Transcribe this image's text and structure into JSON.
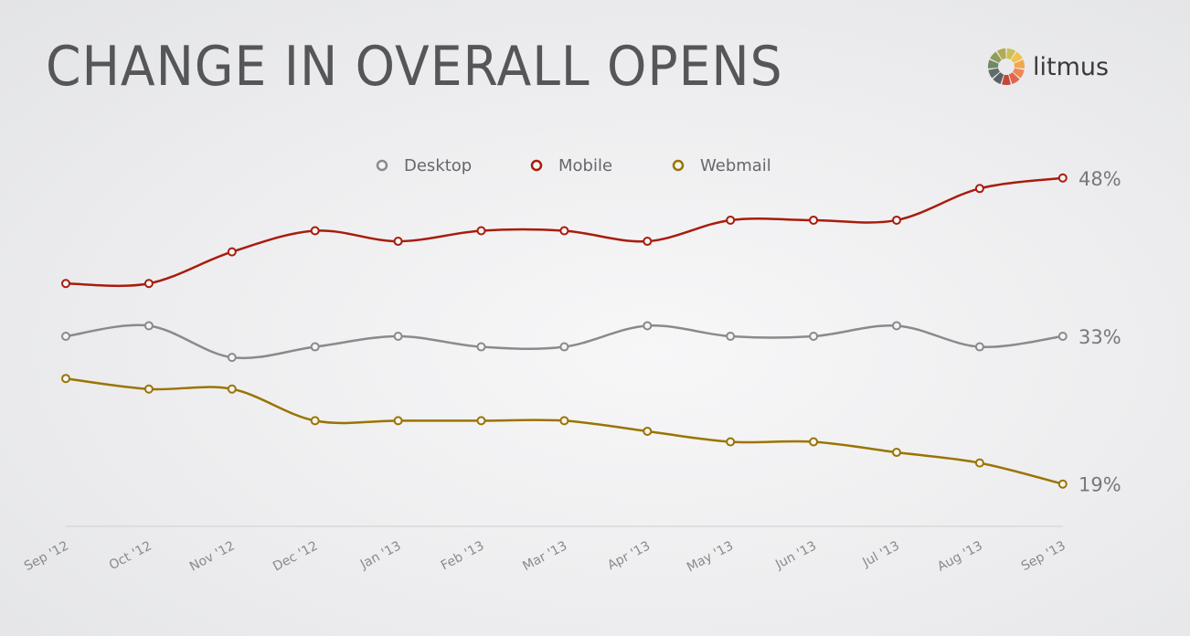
{
  "title": "CHANGE IN OVERALL OPENS",
  "logo": {
    "text": "litmus",
    "colors": [
      "#c8c05a",
      "#f3c24a",
      "#f4a64a",
      "#ee8755",
      "#e2654d",
      "#c3463a",
      "#5a6166",
      "#5f6e68",
      "#6f8868",
      "#8f9c5c",
      "#b1ab52"
    ]
  },
  "chart_data": {
    "type": "line",
    "title": "CHANGE IN OVERALL OPENS",
    "categories": [
      "Sep '12",
      "Oct '12",
      "Nov '12",
      "Dec '12",
      "Jan '13",
      "Feb '13",
      "Mar '13",
      "Apr '13",
      "May '13",
      "Jun '13",
      "Jul '13",
      "Aug '13",
      "Sep '13"
    ],
    "series": [
      {
        "name": "Desktop",
        "color": "#8a8a8c",
        "values": [
          33,
          34,
          31,
          32,
          33,
          32,
          32,
          34,
          33,
          33,
          34,
          32,
          33
        ],
        "end_label": "33%"
      },
      {
        "name": "Mobile",
        "color": "#a81c0c",
        "values": [
          38,
          38,
          41,
          43,
          42,
          43,
          43,
          42,
          44,
          44,
          44,
          47,
          48
        ],
        "end_label": "48%"
      },
      {
        "name": "Webmail",
        "color": "#9a7400",
        "values": [
          29,
          28,
          28,
          25,
          25,
          25,
          25,
          24,
          23,
          23,
          22,
          21,
          19
        ],
        "end_label": "19%"
      }
    ],
    "ylim": [
      15,
      50
    ],
    "grid": false,
    "legend_position": "top-center",
    "smooth": true
  }
}
